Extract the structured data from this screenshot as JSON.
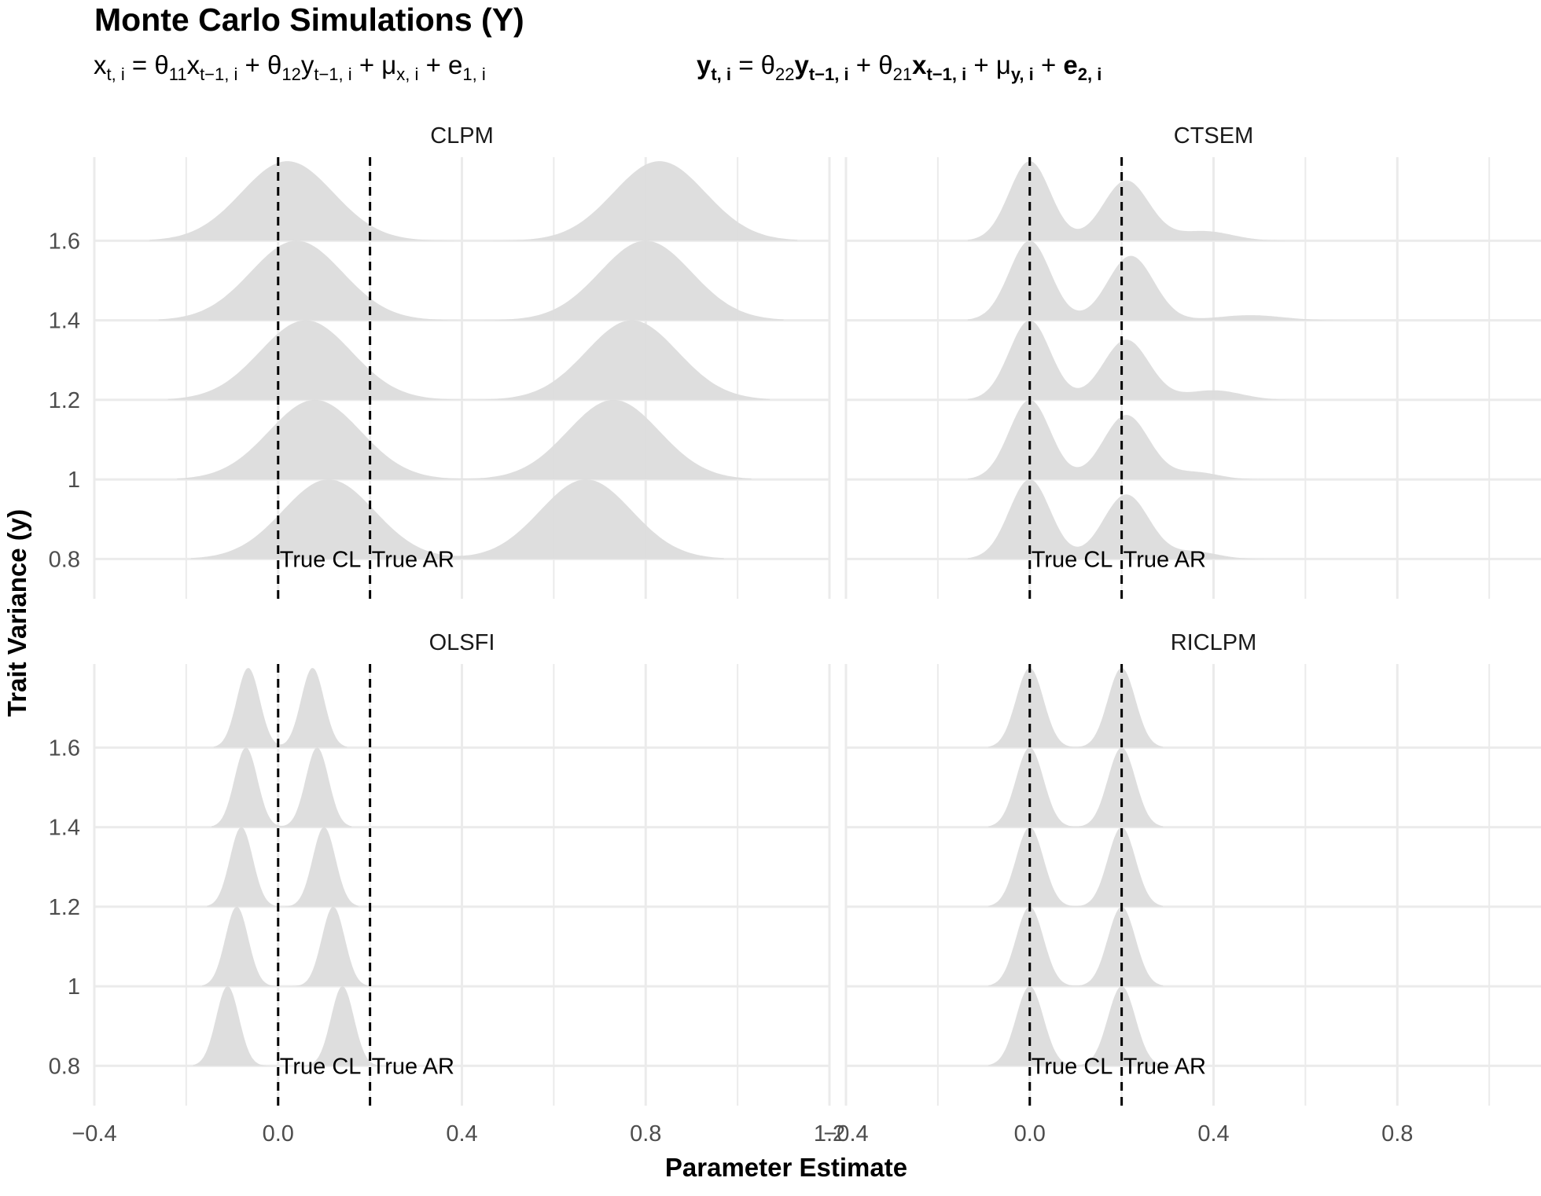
{
  "title": "Monte Carlo Simulations (Y)",
  "equations": {
    "x": {
      "lhs_var": "x",
      "lhs_sub": "t, i",
      "eq": "=",
      "c1": "θ",
      "c1_sub": "11",
      "v1": "x",
      "v1_sub": "t−1, i",
      "plus1": "+",
      "c2": "θ",
      "c2_sub": "12",
      "v2": "y",
      "v2_sub": "t−1, i",
      "plus2": "+",
      "mu": "μ",
      "mu_sub": "x, i",
      "plus3": "+",
      "err": "e",
      "err_sub": "1, i"
    },
    "y": {
      "lhs_var": "y",
      "lhs_sub": "t, i",
      "eq": "=",
      "c1": "θ",
      "c1_sub": "22",
      "v1": "y",
      "v1_sub": "t−1, i",
      "plus1": "+",
      "c2": "θ",
      "c2_sub": "21",
      "v2": "x",
      "v2_sub": "t−1, i",
      "plus2": "+",
      "mu": "μ",
      "mu_sub": "y, i",
      "plus3": "+",
      "err": "e",
      "err_sub": "2, i"
    }
  },
  "colors": {
    "fill": "#dcdcdc",
    "grid": "#ebebeb",
    "axis_text": "#4d4d4d",
    "refline": "#000000"
  },
  "chart_data": {
    "type": "ridgeline",
    "xlabel": "Parameter Estimate",
    "ylabel": "Trait Variance (y)",
    "xlim": [
      -0.4,
      1.2
    ],
    "x_ticks": [
      -0.4,
      0.0,
      0.4,
      0.8,
      1.2
    ],
    "x_tick_labels": [
      "−0.4",
      "0.0",
      "0.4",
      "0.8",
      "1.2"
    ],
    "y_ticks": [
      0.8,
      1.0,
      1.2,
      1.4,
      1.6
    ],
    "y_tick_labels": [
      "0.8",
      "1",
      "1.2",
      "1.4",
      "1.6"
    ],
    "ylim": [
      0.7,
      1.81
    ],
    "ridge_height": 0.2,
    "grid": true,
    "reference_lines": [
      {
        "x": 0.0,
        "label": "True CL"
      },
      {
        "x": 0.2,
        "label": "True AR"
      }
    ],
    "panels": [
      {
        "name": "CLPM",
        "ridges": [
          {
            "y": 0.8,
            "modes": [
              {
                "mean": 0.11,
                "sd": 0.1,
                "weight": 0.5
              },
              {
                "mean": 0.67,
                "sd": 0.1,
                "weight": 0.5
              }
            ]
          },
          {
            "y": 1.0,
            "modes": [
              {
                "mean": 0.08,
                "sd": 0.1,
                "weight": 0.5
              },
              {
                "mean": 0.73,
                "sd": 0.1,
                "weight": 0.5
              }
            ]
          },
          {
            "y": 1.2,
            "modes": [
              {
                "mean": 0.06,
                "sd": 0.1,
                "weight": 0.5
              },
              {
                "mean": 0.77,
                "sd": 0.1,
                "weight": 0.5
              }
            ]
          },
          {
            "y": 1.4,
            "modes": [
              {
                "mean": 0.04,
                "sd": 0.1,
                "weight": 0.5
              },
              {
                "mean": 0.8,
                "sd": 0.1,
                "weight": 0.5
              }
            ]
          },
          {
            "y": 1.6,
            "modes": [
              {
                "mean": 0.02,
                "sd": 0.1,
                "weight": 0.5
              },
              {
                "mean": 0.83,
                "sd": 0.1,
                "weight": 0.5
              }
            ]
          }
        ]
      },
      {
        "name": "CTSEM",
        "ridges": [
          {
            "y": 0.8,
            "modes": [
              {
                "mean": 0.0,
                "sd": 0.045,
                "weight": 0.5
              },
              {
                "mean": 0.21,
                "sd": 0.05,
                "weight": 0.45
              },
              {
                "mean": 0.36,
                "sd": 0.05,
                "weight": 0.05
              }
            ]
          },
          {
            "y": 1.0,
            "modes": [
              {
                "mean": 0.0,
                "sd": 0.045,
                "weight": 0.5
              },
              {
                "mean": 0.21,
                "sd": 0.05,
                "weight": 0.45
              },
              {
                "mean": 0.36,
                "sd": 0.05,
                "weight": 0.05
              }
            ]
          },
          {
            "y": 1.2,
            "modes": [
              {
                "mean": 0.0,
                "sd": 0.045,
                "weight": 0.5
              },
              {
                "mean": 0.21,
                "sd": 0.05,
                "weight": 0.42
              },
              {
                "mean": 0.4,
                "sd": 0.06,
                "weight": 0.08
              }
            ]
          },
          {
            "y": 1.4,
            "modes": [
              {
                "mean": 0.0,
                "sd": 0.045,
                "weight": 0.5
              },
              {
                "mean": 0.22,
                "sd": 0.05,
                "weight": 0.45
              },
              {
                "mean": 0.48,
                "sd": 0.07,
                "weight": 0.05
              }
            ]
          },
          {
            "y": 1.6,
            "modes": [
              {
                "mean": 0.0,
                "sd": 0.045,
                "weight": 0.5
              },
              {
                "mean": 0.21,
                "sd": 0.05,
                "weight": 0.42
              },
              {
                "mean": 0.38,
                "sd": 0.06,
                "weight": 0.08
              }
            ]
          }
        ]
      },
      {
        "name": "OLSFI",
        "ridges": [
          {
            "y": 0.8,
            "modes": [
              {
                "mean": -0.11,
                "sd": 0.025,
                "weight": 0.5
              },
              {
                "mean": 0.14,
                "sd": 0.025,
                "weight": 0.5
              }
            ]
          },
          {
            "y": 1.0,
            "modes": [
              {
                "mean": -0.09,
                "sd": 0.025,
                "weight": 0.5
              },
              {
                "mean": 0.12,
                "sd": 0.025,
                "weight": 0.5
              }
            ]
          },
          {
            "y": 1.2,
            "modes": [
              {
                "mean": -0.08,
                "sd": 0.025,
                "weight": 0.5
              },
              {
                "mean": 0.1,
                "sd": 0.025,
                "weight": 0.5
              }
            ]
          },
          {
            "y": 1.4,
            "modes": [
              {
                "mean": -0.07,
                "sd": 0.025,
                "weight": 0.5
              },
              {
                "mean": 0.085,
                "sd": 0.025,
                "weight": 0.5
              }
            ]
          },
          {
            "y": 1.6,
            "modes": [
              {
                "mean": -0.065,
                "sd": 0.025,
                "weight": 0.5
              },
              {
                "mean": 0.075,
                "sd": 0.025,
                "weight": 0.5
              }
            ]
          }
        ]
      },
      {
        "name": "RICLPM",
        "ridges": [
          {
            "y": 0.8,
            "modes": [
              {
                "mean": 0.0,
                "sd": 0.03,
                "weight": 0.5
              },
              {
                "mean": 0.2,
                "sd": 0.03,
                "weight": 0.5
              }
            ]
          },
          {
            "y": 1.0,
            "modes": [
              {
                "mean": 0.0,
                "sd": 0.03,
                "weight": 0.5
              },
              {
                "mean": 0.2,
                "sd": 0.03,
                "weight": 0.5
              }
            ]
          },
          {
            "y": 1.2,
            "modes": [
              {
                "mean": 0.0,
                "sd": 0.03,
                "weight": 0.5
              },
              {
                "mean": 0.2,
                "sd": 0.03,
                "weight": 0.5
              }
            ]
          },
          {
            "y": 1.4,
            "modes": [
              {
                "mean": 0.0,
                "sd": 0.03,
                "weight": 0.5
              },
              {
                "mean": 0.2,
                "sd": 0.03,
                "weight": 0.5
              }
            ]
          },
          {
            "y": 1.6,
            "modes": [
              {
                "mean": 0.0,
                "sd": 0.03,
                "weight": 0.5
              },
              {
                "mean": 0.2,
                "sd": 0.03,
                "weight": 0.5
              }
            ]
          }
        ]
      }
    ]
  }
}
